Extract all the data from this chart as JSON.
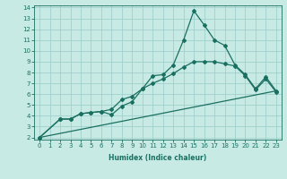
{
  "title": "",
  "xlabel": "Humidex (Indice chaleur)",
  "bg_color": "#c8eae5",
  "grid_color": "#a0d0cc",
  "line_color": "#1a7060",
  "xlim": [
    -0.5,
    23.5
  ],
  "ylim": [
    1.8,
    14.2
  ],
  "xticks": [
    0,
    1,
    2,
    3,
    4,
    5,
    6,
    7,
    8,
    9,
    10,
    11,
    12,
    13,
    14,
    15,
    16,
    17,
    18,
    19,
    20,
    21,
    22,
    23
  ],
  "yticks": [
    2,
    3,
    4,
    5,
    6,
    7,
    8,
    9,
    10,
    11,
    12,
    13,
    14
  ],
  "series1_x": [
    0,
    2,
    3,
    4,
    5,
    6,
    7,
    8,
    9,
    10,
    11,
    12,
    13,
    14,
    15,
    16,
    17,
    18,
    19,
    20,
    21,
    22,
    23
  ],
  "series1_y": [
    2.0,
    3.7,
    3.7,
    4.2,
    4.3,
    4.4,
    4.1,
    4.9,
    5.3,
    6.5,
    7.7,
    7.8,
    8.7,
    11.0,
    13.7,
    12.4,
    11.0,
    10.5,
    8.7,
    7.8,
    6.5,
    7.6,
    6.3
  ],
  "series2_x": [
    0,
    2,
    3,
    4,
    5,
    6,
    7,
    8,
    9,
    10,
    11,
    12,
    13,
    14,
    15,
    16,
    17,
    18,
    19,
    20,
    21,
    22,
    23
  ],
  "series2_y": [
    2.0,
    3.7,
    3.7,
    4.2,
    4.3,
    4.4,
    4.6,
    5.5,
    5.8,
    6.5,
    7.0,
    7.4,
    7.9,
    8.5,
    9.0,
    9.0,
    9.0,
    8.8,
    8.6,
    7.7,
    6.4,
    7.4,
    6.2
  ],
  "series3_x": [
    0,
    23
  ],
  "series3_y": [
    2.0,
    6.3
  ],
  "marker": "D",
  "marker_size": 2.0,
  "linewidth": 0.9,
  "tick_labelsize": 5,
  "xlabel_fontsize": 5.5,
  "xlabel_fontweight": "bold"
}
